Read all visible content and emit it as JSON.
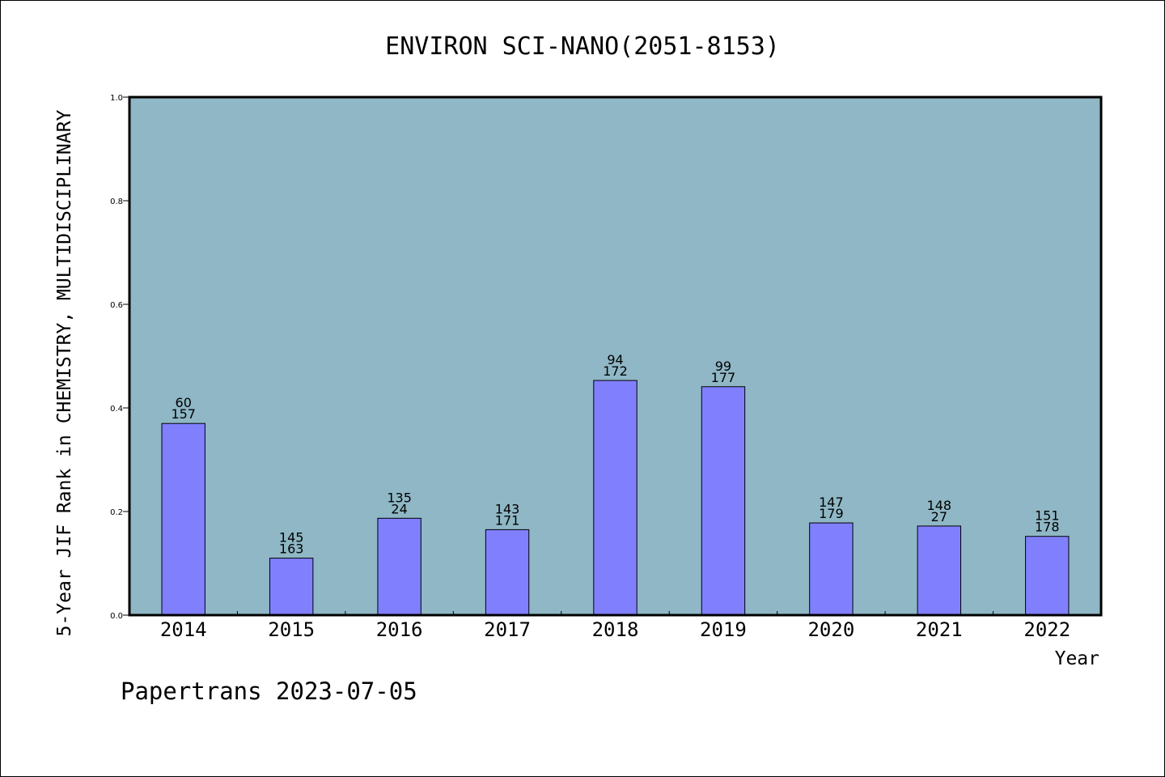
{
  "chart_data": {
    "type": "bar",
    "title": "ENVIRON SCI-NANO(2051-8153)",
    "xlabel": "Year",
    "ylabel": "5-Year JIF Rank in CHEMISTRY, MULTIDISCIPLINARY",
    "categories": [
      "2014",
      "2015",
      "2016",
      "2017",
      "2018",
      "2019",
      "2020",
      "2021",
      "2022"
    ],
    "values": [
      0.37,
      0.11,
      0.187,
      0.165,
      0.453,
      0.441,
      0.178,
      0.172,
      0.152
    ],
    "labels_top": [
      "60",
      "145",
      "135",
      "143",
      "94",
      "99",
      "147",
      "148",
      "151"
    ],
    "labels_bottom": [
      "157",
      "163",
      "24",
      "171",
      "172",
      "177",
      "179",
      "27",
      "178"
    ],
    "ylim": [
      0,
      1.0
    ],
    "yticks": [
      "0.0",
      "0.2",
      "0.4",
      "0.6",
      "0.8",
      "1.0"
    ],
    "grid": false,
    "legend": "none",
    "colors": {
      "plot_bg": "#8fb7c5",
      "bar": "#8080ff",
      "bar_edge": "#000000"
    }
  },
  "footer": {
    "text": "Papertrans 2023-07-05"
  }
}
